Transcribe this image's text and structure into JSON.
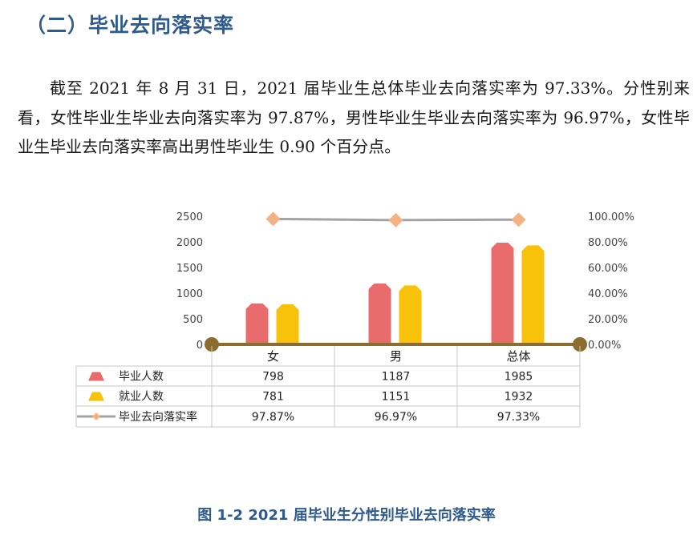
{
  "heading": "（二）毕业去向落实率",
  "paragraph": "截至 2021 年 8 月 31 日，2021 届毕业生总体毕业去向落实率为 97.33%。分性别来看，女性毕业生毕业去向落实率为 97.87%，男性毕业生毕业去向落实率为 96.97%，女性毕业生毕业去向落实率高出男性毕业生 0.90 个百分点。",
  "caption": "图 1-2 2021 届毕业生分性别毕业去向落实率",
  "colors": {
    "graduates": "#e86c6c",
    "employed": "#f9c20a",
    "rate": "#a3a3a3",
    "rate_marker": "#f4b183",
    "axis": "#8c6d2d",
    "heading": "#2e5a8c"
  },
  "chart_data": {
    "type": "bar",
    "categories": [
      "女",
      "男",
      "总体"
    ],
    "series": [
      {
        "name": "毕业人数",
        "type": "bar",
        "axis": "left",
        "values": [
          798,
          1187,
          1985
        ]
      },
      {
        "name": "就业人数",
        "type": "bar",
        "axis": "left",
        "values": [
          781,
          1151,
          1932
        ]
      },
      {
        "name": "毕业去向落实率",
        "type": "line",
        "axis": "right",
        "values": [
          97.87,
          96.97,
          97.33
        ]
      }
    ],
    "table_values": [
      [
        "798",
        "1187",
        "1985"
      ],
      [
        "781",
        "1151",
        "1932"
      ],
      [
        "97.87%",
        "96.97%",
        "97.33%"
      ]
    ],
    "left_axis": {
      "ylim": [
        0,
        2500
      ],
      "ticks": [
        "0",
        "500",
        "1000",
        "1500",
        "2000",
        "2500"
      ]
    },
    "right_axis": {
      "ylim": [
        0,
        100
      ],
      "ticks": [
        "0.00%",
        "20.00%",
        "40.00%",
        "60.00%",
        "80.00%",
        "100.00%"
      ]
    },
    "grid": false,
    "legend": "data-table"
  }
}
